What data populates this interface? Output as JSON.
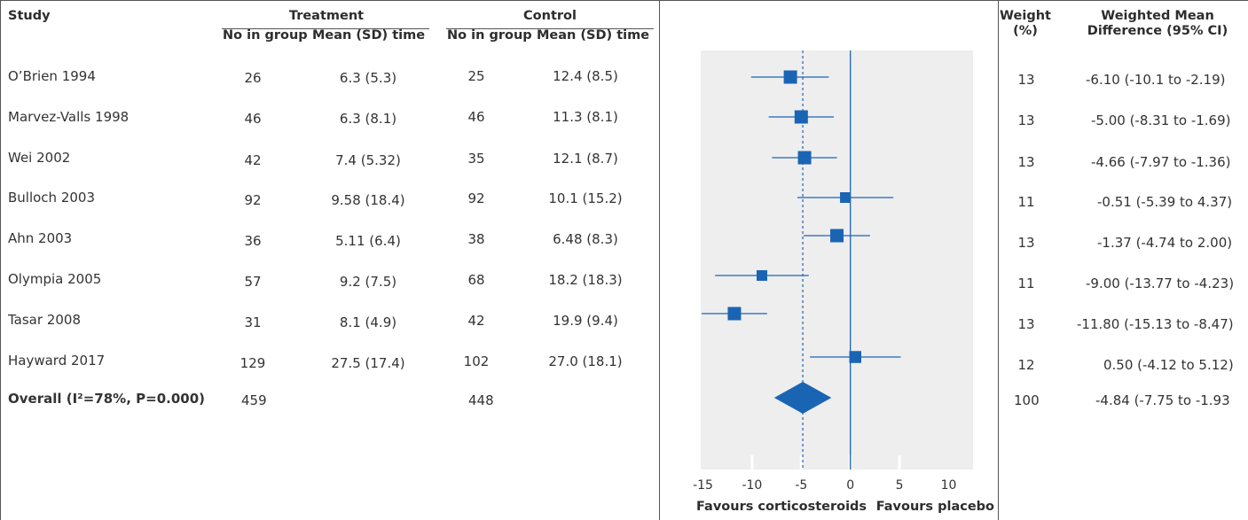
{
  "headers": {
    "study": "Study",
    "treatment": "Treatment",
    "control": "Control",
    "no_in_group": "No in group",
    "mean_sd_time": "Mean (SD) time",
    "weight_line1": "Weight",
    "weight_line2": "(%)",
    "wmd_line1": "Weighted Mean",
    "wmd_line2": "Difference (95% CI)"
  },
  "rows": [
    {
      "study": "O’Brien 1994",
      "t_n": "26",
      "t_mean": "6.3 (5.3)",
      "c_n": "25",
      "c_mean": "12.4 (8.5)",
      "weight": "13",
      "wmd": "-6.10 (-10.1 to -2.19)"
    },
    {
      "study": "Marvez-Valls 1998",
      "t_n": "46",
      "t_mean": "6.3 (8.1)",
      "c_n": "46",
      "c_mean": "11.3 (8.1)",
      "weight": "13",
      "wmd": "-5.00 (-8.31 to -1.69)"
    },
    {
      "study": "Wei 2002",
      "t_n": "42",
      "t_mean": "7.4 (5.32)",
      "c_n": "35",
      "c_mean": "12.1 (8.7)",
      "weight": "13",
      "wmd": "-4.66 (-7.97 to -1.36)"
    },
    {
      "study": "Bulloch 2003",
      "t_n": "92",
      "t_mean": "9.58 (18.4)",
      "c_n": "92",
      "c_mean": "10.1 (15.2)",
      "weight": "11",
      "wmd": "-0.51 (-5.39 to 4.37)"
    },
    {
      "study": "Ahn 2003",
      "t_n": "36",
      "t_mean": "5.11 (6.4)",
      "c_n": "38",
      "c_mean": "6.48 (8.3)",
      "weight": "13",
      "wmd": "-1.37 (-4.74 to 2.00)"
    },
    {
      "study": "Olympia 2005",
      "t_n": "57",
      "t_mean": "9.2 (7.5)",
      "c_n": "68",
      "c_mean": "18.2 (18.3)",
      "weight": "11",
      "wmd": "-9.00 (-13.77 to -4.23)"
    },
    {
      "study": "Tasar 2008",
      "t_n": "31",
      "t_mean": "8.1 (4.9)",
      "c_n": "42",
      "c_mean": "19.9 (9.4)",
      "weight": "13",
      "wmd": "-11.80 (-15.13 to -8.47)"
    },
    {
      "study": "Hayward 2017",
      "t_n": "129",
      "t_mean": "27.5 (17.4)",
      "c_n": "102",
      "c_mean": "27.0 (18.1)",
      "weight": "12",
      "wmd": "0.50 (-4.12 to 5.12)"
    }
  ],
  "overall": {
    "study": "Overall (I²=78%, P=0.000)",
    "t_n": "459",
    "c_n": "448",
    "weight": "100",
    "wmd": "-4.84 (-7.75 to -1.93"
  },
  "chart_data": {
    "type": "forest",
    "xlim": [
      -15,
      10
    ],
    "ticks": [
      "-15",
      "-10",
      "-5",
      "0",
      "5",
      "10"
    ],
    "tick_values": [
      -15,
      -10,
      -5,
      0,
      5,
      10
    ],
    "reference_line": 0,
    "pooled_line": -4.84,
    "xlabel_left": "Favours corticosteroids",
    "xlabel_right": "Favours placebo",
    "studies": [
      {
        "label": "O’Brien 1994",
        "est": -6.1,
        "lo": -10.1,
        "hi": -2.19,
        "weight": 13
      },
      {
        "label": "Marvez-Valls 1998",
        "est": -5.0,
        "lo": -8.31,
        "hi": -1.69,
        "weight": 13
      },
      {
        "label": "Wei 2002",
        "est": -4.66,
        "lo": -7.97,
        "hi": -1.36,
        "weight": 13
      },
      {
        "label": "Bulloch 2003",
        "est": -0.51,
        "lo": -5.39,
        "hi": 4.37,
        "weight": 11
      },
      {
        "label": "Ahn 2003",
        "est": -1.37,
        "lo": -4.74,
        "hi": 2.0,
        "weight": 13
      },
      {
        "label": "Olympia 2005",
        "est": -9.0,
        "lo": -13.77,
        "hi": -4.23,
        "weight": 11
      },
      {
        "label": "Tasar 2008",
        "est": -11.8,
        "lo": -15.13,
        "hi": -8.47,
        "weight": 13
      },
      {
        "label": "Hayward 2017",
        "est": 0.5,
        "lo": -4.12,
        "hi": 5.12,
        "weight": 12
      }
    ],
    "overall": {
      "est": -4.84,
      "lo": -7.75,
      "hi": -1.93
    },
    "colors": {
      "marker": "#1a64b4",
      "panel": "#eeeeee",
      "axis": "#1a64b4"
    }
  }
}
